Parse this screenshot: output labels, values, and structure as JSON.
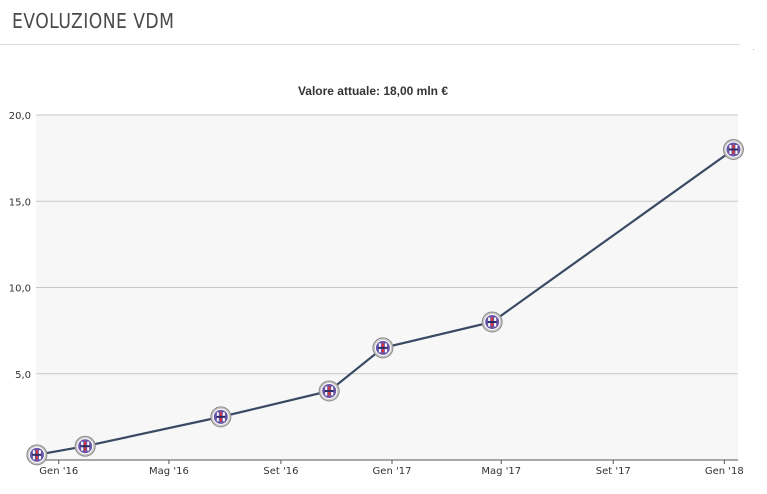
{
  "header": {
    "title": "EVOLUZIONE VDM"
  },
  "chart_data": {
    "type": "line",
    "title": "Valore attuale: 18,00 mln €",
    "xlabel": "",
    "ylabel": "",
    "x_ticks": [
      "Gen '16",
      "Mag '16",
      "Set '16",
      "Gen '17",
      "Mag '17",
      "Set '17",
      "Gen '18"
    ],
    "y_ticks": [
      "5,0",
      "10,0",
      "15,0",
      "20,0"
    ],
    "ylim": [
      0,
      20
    ],
    "xlim": [
      "2015-12-07",
      "2018-01-16"
    ],
    "grid": true,
    "legend": "none",
    "colors": {
      "line": "#3a4a63",
      "grid": "#c8c8c8",
      "plot_bg": "#f7f7f7",
      "marker_fill": "#6a55a8",
      "marker_ring": "#c8c8c8"
    },
    "marker_icon": "club-crest-icon",
    "series": [
      {
        "x": [
          "2015-12-08",
          "2016-01-30",
          "2016-06-27",
          "2016-10-24",
          "2016-12-22",
          "2017-04-21",
          "2018-01-11"
        ],
        "y": [
          0.3,
          0.8,
          2.5,
          4.0,
          6.5,
          8.0,
          18.0
        ]
      }
    ]
  }
}
